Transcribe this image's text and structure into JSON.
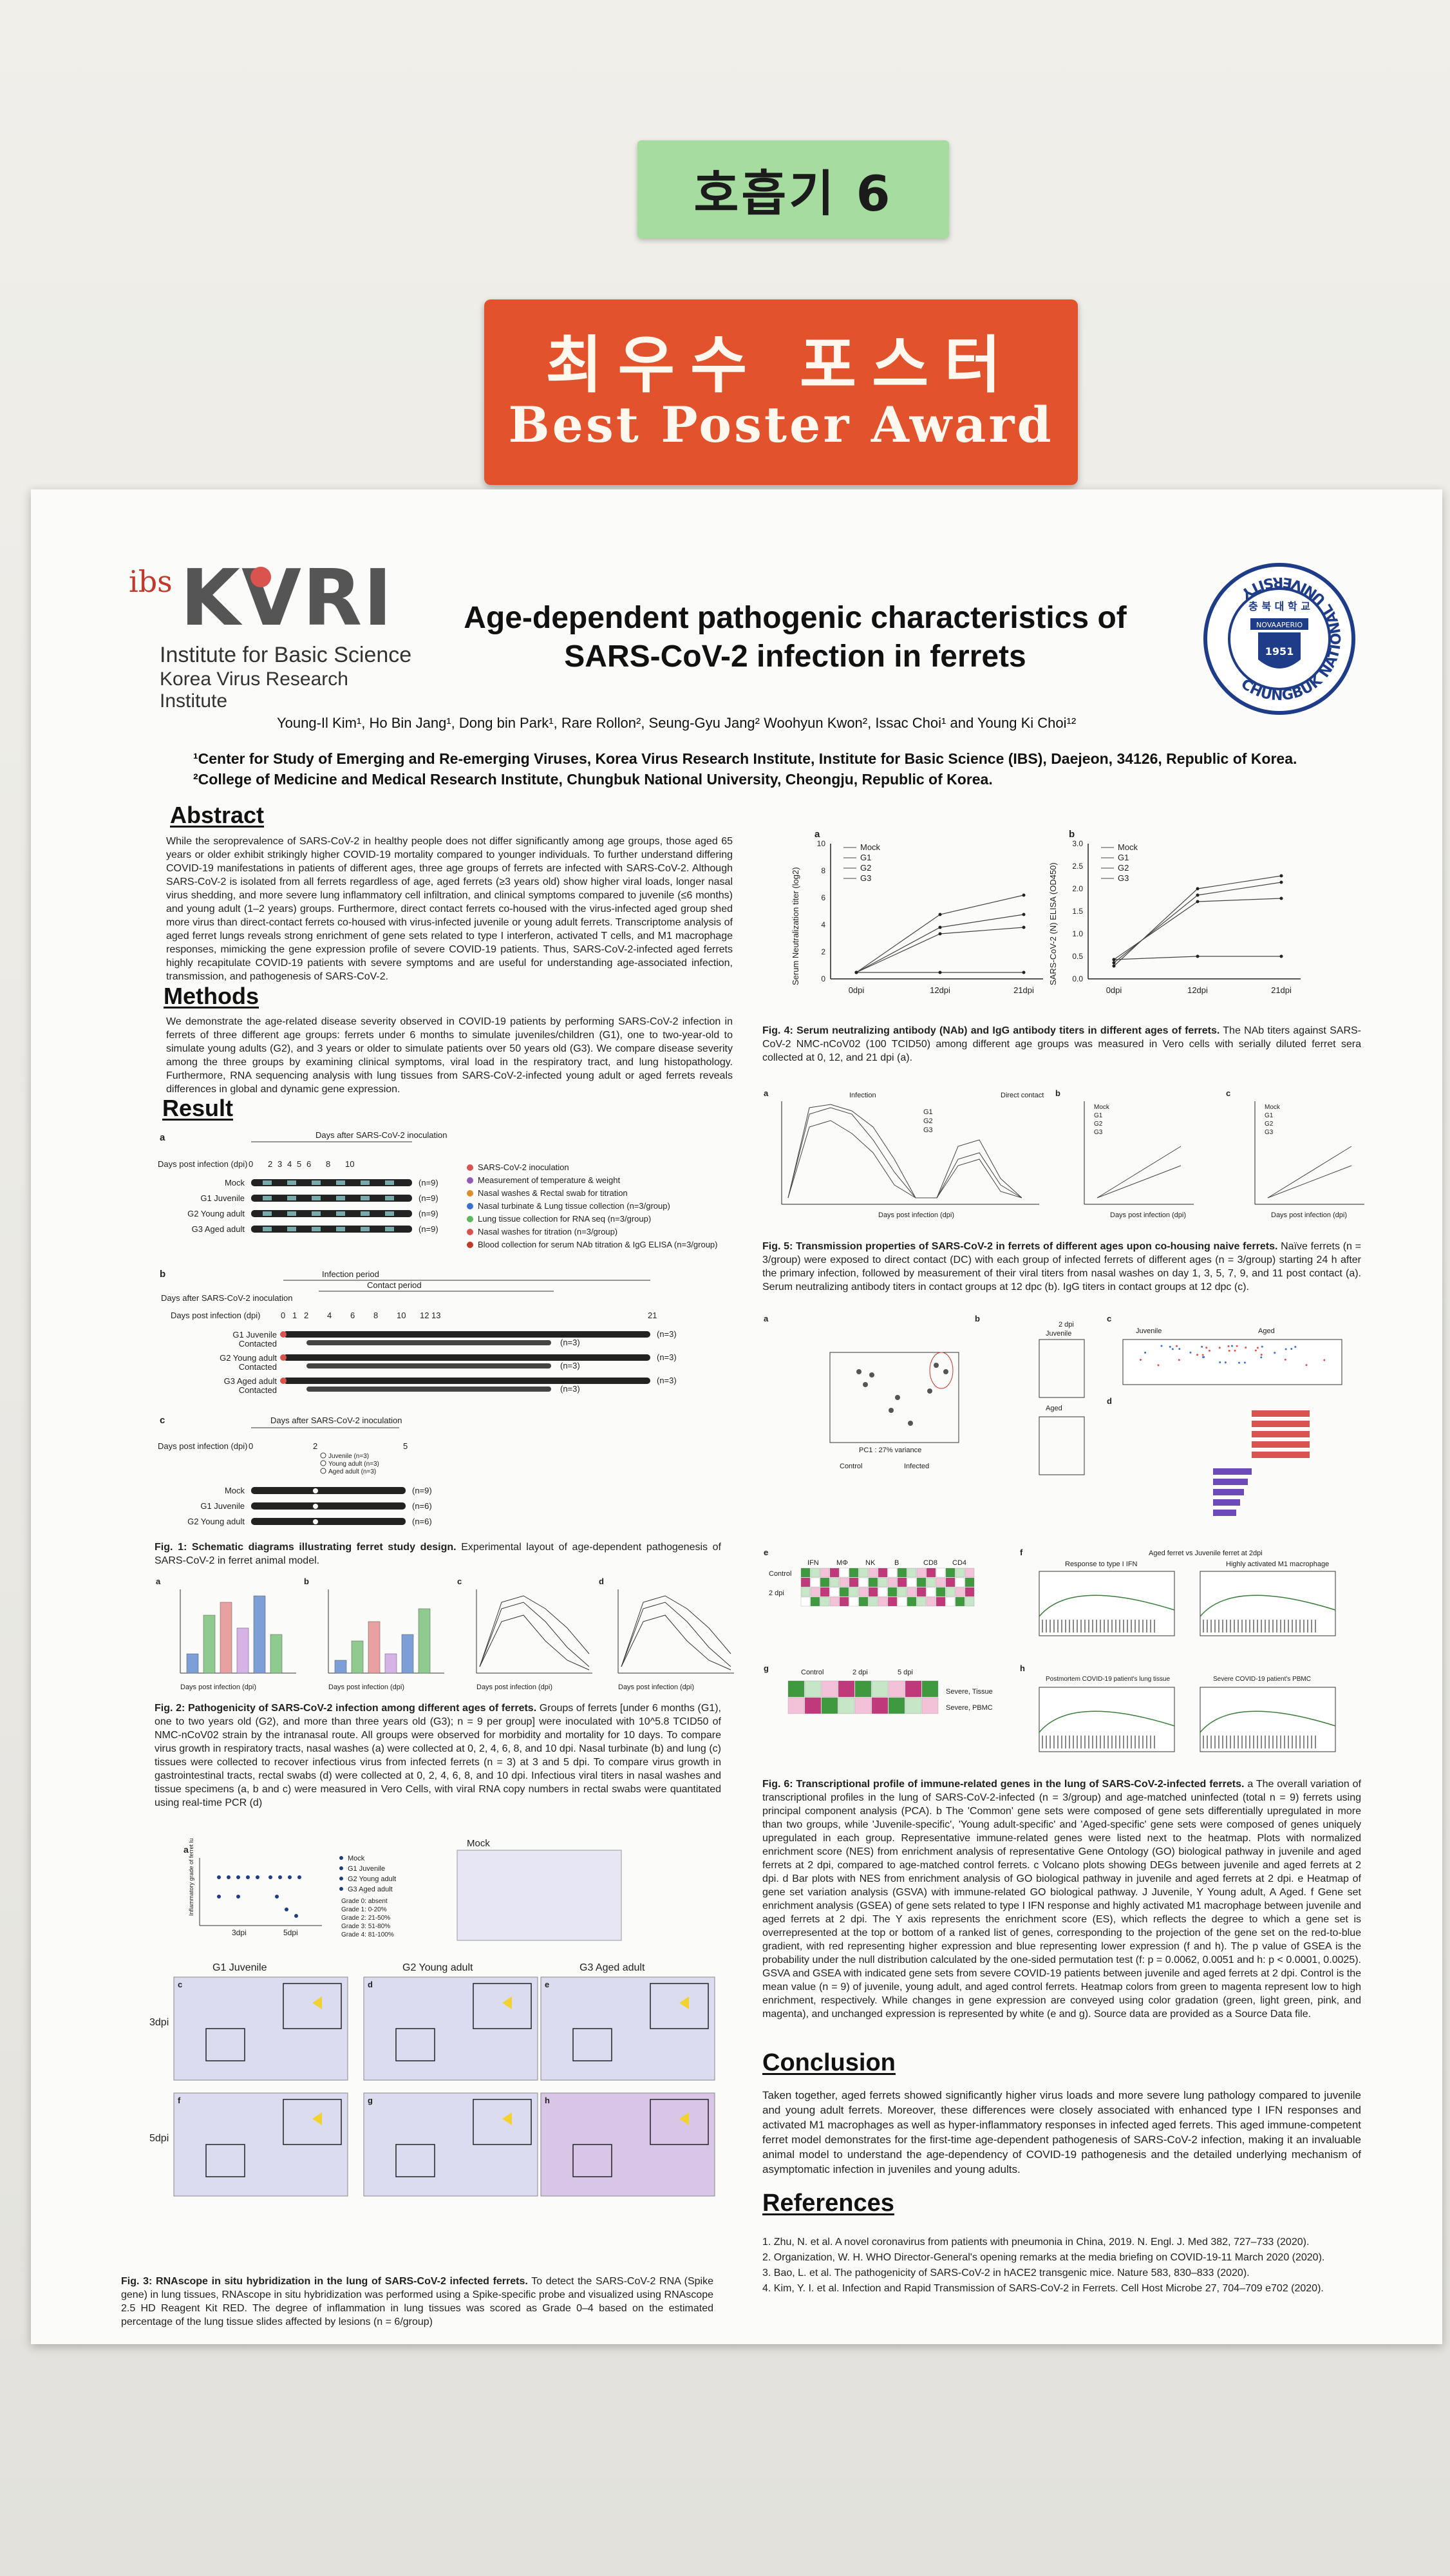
{
  "signs": {
    "label": "호흡기 6",
    "award_korean": "최우수 포스터",
    "award_english": "Best Poster Award"
  },
  "poster": {
    "logo_ibs": "ibs",
    "logo_kvri": "KVRI",
    "logo_line1": "Institute for Basic Science",
    "logo_line2": "Korea Virus Research Institute",
    "seal_top": "충 북 대 학 교",
    "seal_motto": "NOVAAPERIO",
    "seal_year": "1951",
    "seal_ring": "CHUNGBUK NATIONAL UNIVERSITY",
    "title_line1": "Age-dependent pathogenic characteristics of",
    "title_line2": "SARS-CoV-2 infection in ferrets",
    "authors": "Young-Il Kim¹, Ho Bin Jang¹, Dong bin Park¹, Rare Rollon², Seung-Gyu Jang² Woohyun Kwon², Issac Choi¹ and Young Ki Choi¹²",
    "affil1": "¹Center for Study of Emerging and Re-emerging Viruses, Korea Virus Research Institute, Institute for Basic Science (IBS), Daejeon, 34126, Republic of Korea.",
    "affil2": "²College of Medicine and Medical Research Institute, Chungbuk National University, Cheongju, Republic of Korea."
  },
  "sections": {
    "abstract_h": "Abstract",
    "abstract": "While the seroprevalence of SARS-CoV-2 in healthy people does not differ significantly among age groups, those aged 65 years or older exhibit strikingly higher COVID-19 mortality compared to younger individuals. To further understand differing COVID-19 manifestations in patients of different ages, three age groups of ferrets are infected with SARS-CoV-2. Although SARS-CoV-2 is isolated from all ferrets regardless of age, aged ferrets (≥3 years old) show higher viral loads, longer nasal virus shedding, and more severe lung inflammatory cell infiltration, and clinical symptoms compared to juvenile (≤6 months) and young adult (1–2 years) groups. Furthermore, direct contact ferrets co-housed with the virus-infected aged group shed more virus than direct-contact ferrets co-housed with virus-infected juvenile or young adult ferrets. Transcriptome analysis of aged ferret lungs reveals strong enrichment of gene sets related to type I interferon, activated T cells, and M1 macrophage responses, mimicking the gene expression profile of severe COVID-19 patients. Thus, SARS-CoV-2-infected aged ferrets highly recapitulate COVID-19 patients with severe symptoms and are useful for understanding age-associated infection, transmission, and pathogenesis of SARS-CoV-2.",
    "methods_h": "Methods",
    "methods": "We demonstrate the age-related disease severity observed in COVID-19 patients by performing SARS-CoV-2 infection in ferrets of three different age groups: ferrets under 6 months to simulate juveniles/children (G1), one to two-year-old to simulate young adults (G2), and 3 years or older to simulate patients over 50 years old (G3). We compare disease severity among the three groups by examining clinical symptoms, viral load in the respiratory tract, and lung histopathology. Furthermore, RNA sequencing analysis with lung tissues from SARS-CoV-2-infected young adult or aged ferrets reveals differences in global and dynamic gene expression.",
    "result_h": "Result",
    "conclusion_h": "Conclusion",
    "conclusion": "Taken together, aged ferrets showed significantly higher virus loads and more severe lung pathology compared to juvenile and young adult ferrets. Moreover, these differences were closely associated with enhanced type I IFN responses and activated M1 macrophages as well as hyper-inflammatory responses in infected aged ferrets. This aged immune-competent ferret model demonstrates for the first-time age-dependent pathogenesis of SARS-CoV-2 infection, making it an invaluable animal model to understand the age-dependency of COVID-19 pathogenesis and the detailed underlying mechanism of asymptomatic infection in juveniles and young adults.",
    "references_h": "References",
    "references": [
      "1. Zhu, N. et al. A novel coronavirus from patients with pneumonia in China, 2019. N. Engl. J. Med 382, 727–733 (2020).",
      "2. Organization, W. H. WHO Director-General's opening remarks at the media briefing on COVID-19-11 March 2020 (2020).",
      "3. Bao, L. et al. The pathogenicity of SARS-CoV-2 in hACE2 transgenic mice. Nature 583, 830–833 (2020).",
      "4. Kim, Y. I. et al. Infection and Rapid Transmission of SARS-CoV-2 in Ferrets. Cell Host Microbe 27, 704–709 e702 (2020)."
    ]
  },
  "fig1": {
    "header": "Days after SARS-CoV-2 inoculation",
    "dpi_label": "Days post infection (dpi)",
    "ticks_a": [
      "0",
      "2",
      "3",
      "4",
      "5",
      "6",
      "8",
      "10"
    ],
    "rows_a": [
      {
        "label": "Mock",
        "n": "(n=9)"
      },
      {
        "label": "G1 Juvenile",
        "n": "(n=9)"
      },
      {
        "label": "G2 Young adult",
        "n": "(n=9)"
      },
      {
        "label": "G3  Aged adult",
        "n": "(n=9)"
      }
    ],
    "legend": [
      {
        "text": "SARS-CoV-2 inoculation",
        "color": "#d9534f"
      },
      {
        "text": "Measurement of temperature & weight",
        "color": "#8e5bb8"
      },
      {
        "text": "Nasal washes & Rectal swab for titration",
        "color": "#e08e2b"
      },
      {
        "text": "Nasal turbinate & Lung tissue collection (n=3/group)",
        "color": "#3b6fd4"
      },
      {
        "text": "Lung tissue collection for RNA seq (n=3/group)",
        "color": "#5cb85c"
      },
      {
        "text": "Nasal washes for titration (n=3/group)",
        "color": "#d9534f"
      },
      {
        "text": "Blood collection for serum NAb titration & IgG ELISA (n=3/group)",
        "color": "#c0392b"
      }
    ],
    "infection_period": "Infection period",
    "contact_period": "Contact period",
    "ticks_b": [
      "0",
      "1",
      "2",
      "4",
      "6",
      "8",
      "10",
      "12",
      "13",
      "21"
    ],
    "rows_b": [
      {
        "l1": "G1 Juvenile",
        "l2": "Contacted",
        "n": "(n=3)"
      },
      {
        "l1": "G2 Young adult",
        "l2": "Contacted",
        "n": "(n=3)"
      },
      {
        "l1": "G3  Aged adult",
        "l2": "Contacted",
        "n": "(n=3)"
      }
    ],
    "ticks_c": [
      "0",
      "2",
      "5"
    ],
    "legend_c": [
      "Juvenile (n=3)",
      "Young adult (n=3)",
      "Aged adult (n=3)"
    ],
    "rows_c": [
      {
        "label": "Mock",
        "n": "(n=9)"
      },
      {
        "label": "G1 Juvenile",
        "n": "(n=6)"
      },
      {
        "label": "G2 Young adult",
        "n": "(n=6)"
      },
      {
        "label": "G3 Aged adult",
        "n": "(n=6)"
      }
    ],
    "caption_b": "Fig. 1: Schematic diagrams illustrating ferret study design.",
    "caption": " Experimental layout of age-dependent pathogenesis of SARS-CoV-2 in ferret animal model."
  },
  "fig2": {
    "caption_b": "Fig. 2: Pathogenicity of SARS-CoV-2 infection among different ages of ferrets.",
    "caption": " Groups of ferrets [under 6 months (G1), one to two years old (G2), and more than three years old (G3); n = 9 per group] were inoculated with 10^5.8 TCID50 of NMC-nCoV02 strain by the intranasal route. All groups were observed for morbidity and mortality for 10 days. To compare virus growth in respiratory tracts, nasal washes (a) were collected at 0, 2, 4, 6, 8, and 10 dpi. Nasal turbinate (b) and lung (c) tissues were collected to recover infectious virus from infected ferrets (n = 3) at 3 and 5 dpi. To compare virus growth in gastrointestinal tracts, rectal swabs (d) were collected at 0, 2, 4, 6, 8, and 10 dpi. Infectious viral titers in nasal washes and tissue specimens (a, b and c) were measured in Vero Cells, with viral RNA copy numbers in rectal swabs were quantitated using real-time PCR (d)",
    "panel_labels": [
      "a",
      "b",
      "c",
      "d"
    ],
    "xlabel": "Days post infection (dpi)"
  },
  "fig3": {
    "mock_label": "Mock",
    "col_labels": [
      "G1 Juvenile",
      "G2 Young adult",
      "G3 Aged adult"
    ],
    "row_labels": [
      "3dpi",
      "5dpi"
    ],
    "panel_letters": [
      "c",
      "d",
      "e",
      "f",
      "g",
      "h"
    ],
    "panel_a": "a",
    "panel_b": "b",
    "score_ylabel": "Inflammatory grade of ferret lungs",
    "score_x": [
      "3dpi",
      "5dpi"
    ],
    "legend": [
      "Mock",
      "G1 Juvenile",
      "G2 Young adult",
      "G3 Aged adult"
    ],
    "grades": [
      "Grade 0: absent",
      "Grade 1: 0-20%",
      "Grade 2: 21-50%",
      "Grade 3: 51-80%",
      "Grade 4: 81-100%"
    ],
    "caption_b": "Fig. 3: RNAscope in situ hybridization in the lung of SARS-CoV-2 infected ferrets.",
    "caption": " To detect the SARS-CoV-2 RNA (Spike gene) in lung tissues, RNAscope in situ hybridization was performed using a Spike-specific probe and visualized using RNAscope 2.5 HD Reagent Kit RED. The degree of inflammation in lung tissues was scored as Grade 0–4 based on the estimated percentage of the lung tissue slides affected by lesions (n = 6/group)"
  },
  "fig4": {
    "panel_a": "a",
    "panel_b": "b",
    "ylabel_a": "Serum Neutralization titer (log2)",
    "ylabel_b": "SARS-CoV-2 (N) ELISA (OD450)",
    "x": [
      "0dpi",
      "12dpi",
      "21dpi"
    ],
    "legend": [
      "Mock",
      "G1",
      "G2",
      "G3"
    ],
    "yticks_a": [
      "0",
      "2",
      "4",
      "6",
      "8",
      "10"
    ],
    "yticks_b": [
      "0.0",
      "0.5",
      "1.0",
      "1.5",
      "2.0",
      "2.5",
      "3.0"
    ],
    "caption_b": "Fig. 4: Serum neutralizing antibody (NAb) and IgG antibody titers in different ages of ferrets.",
    "caption": " The NAb titers against SARS-CoV-2 NMC-nCoV02 (100 TCID50) among different age groups was measured in Vero cells with serially diluted ferret sera collected at 0, 12, and 21 dpi (a)."
  },
  "fig5": {
    "infection": "Infection",
    "direct_contact": "Direct contact",
    "panel_labels": [
      "a",
      "b",
      "c"
    ],
    "xlabel": "Days post infection (dpi)",
    "legend": [
      "G1",
      "G2",
      "G3"
    ],
    "legend_b": [
      "Mock",
      "G1",
      "G2",
      "G3"
    ],
    "caption_b": "Fig. 5: Transmission properties of SARS-CoV-2 in ferrets of different ages upon co-housing naive ferrets.",
    "caption": " Naïve ferrets (n = 3/group) were exposed to direct contact (DC) with each group of infected ferrets of different ages (n = 3/group) starting 24 h after the primary infection, followed by measurement of their viral titers from nasal washes on day 1, 3, 5, 7, 9, and 11 post contact (a). Serum neutralizing antibody titers in contact groups at 12 dpc (b). IgG titers in contact groups at 12 dpc (c)."
  },
  "fig6": {
    "pca_label": "PC1 : 27% variance",
    "juvenile": "Juvenile",
    "aged": "Aged",
    "dpi2": "2 dpi",
    "dpi5": "5 dpi",
    "control": "Control",
    "infected": "Infected",
    "heat_cols": [
      "IFN",
      "MΦ",
      "NK",
      "B",
      "CD8",
      "CD4"
    ],
    "ferret_title": "Aged ferret vs Juvenile ferret at 2dpi",
    "gsea1": "Response to type I IFN",
    "gsea2": "Highly activated M1 macrophage",
    "gsea3": "Postmortem COVID-19 patient's lung tissue",
    "gsea4": "Severe COVID-19 patient's PBMC",
    "severe_tissue": "Severe, Tissue",
    "severe_pbmc": "Severe, PBMC",
    "panel_letters": [
      "a",
      "b",
      "c",
      "d",
      "e",
      "f",
      "g",
      "h"
    ],
    "caption_b": "Fig. 6: Transcriptional profile of immune-related genes in the lung of SARS-CoV-2-infected ferrets.",
    "caption": " a The overall variation of transcriptional profiles in the lung of SARS-CoV-2-infected (n = 3/group) and age-matched uninfected (total n = 9) ferrets using principal component analysis (PCA). b The 'Common' gene sets were composed of gene sets differentially upregulated in more than two groups, while 'Juvenile-specific', 'Young adult-specific' and 'Aged-specific' gene sets were composed of genes uniquely upregulated in each group. Representative immune-related genes were listed next to the heatmap. Plots with normalized enrichment score (NES) from enrichment analysis of representative Gene Ontology (GO) biological pathway in juvenile and aged ferrets at 2 dpi, compared to age-matched control ferrets. c Volcano plots showing DEGs between juvenile and aged ferrets at 2 dpi. d Bar plots with NES from enrichment analysis of GO biological pathway in juvenile and aged ferrets at 2 dpi. e Heatmap of gene set variation analysis (GSVA) with immune-related GO biological pathway. J Juvenile, Y Young adult, A Aged. f Gene set enrichment analysis (GSEA) of gene sets related to type I IFN response and highly activated M1 macrophage between juvenile and aged ferrets at 2 dpi. The Y axis represents the enrichment score (ES), which reflects the degree to which a gene set is overrepresented at the top or bottom of a ranked list of genes, corresponding to the projection of the gene set on the red-to-blue gradient, with red representing higher expression and blue representing lower expression (f and h). The p value of GSEA is the probability under the null distribution calculated by the one-sided permutation test (f: p = 0.0062, 0.0051 and h: p < 0.0001, 0.0025). GSVA and GSEA with indicated gene sets from severe COVID-19 patients between juvenile and aged ferrets at 2 dpi. Control is the mean value (n = 9) of juvenile, young adult, and aged control ferrets. Heatmap colors from green to magenta represent low to high enrichment, respectively. While changes in gene expression are conveyed using color gradation (green, light green, pink, and magenta), and unchanged expression is represented by white (e and g). Source data are provided as a Source Data file."
  }
}
